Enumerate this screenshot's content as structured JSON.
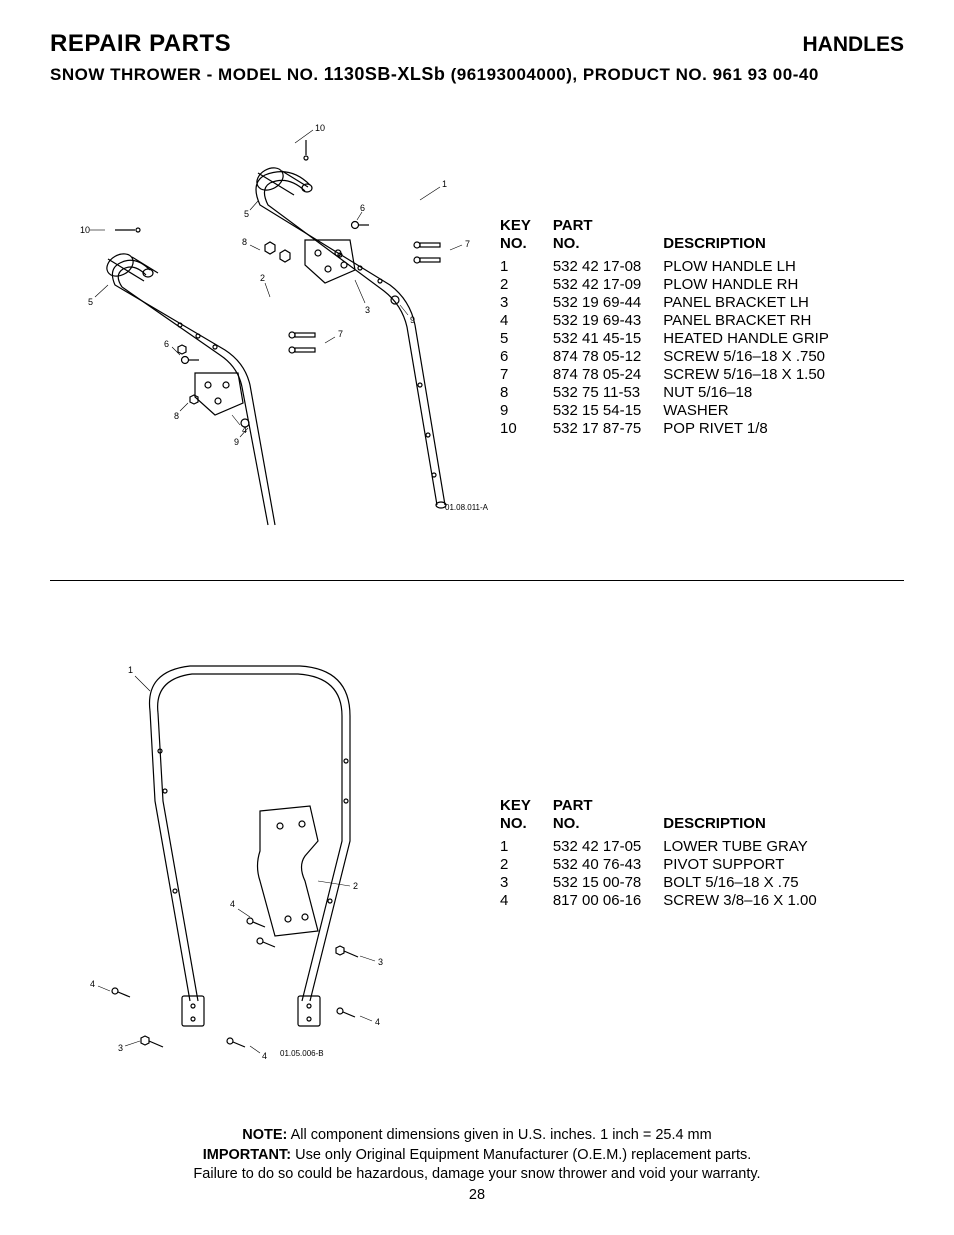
{
  "header": {
    "left_title": "REPAIR PARTS",
    "right_title": "HANDLES",
    "subtitle_prefix": "SNOW THROWER - MODEL NO. ",
    "model": "1130SB-XLSb",
    "subtitle_suffix": " (96193004000), PRODUCT NO. 961 93 00-40"
  },
  "table_headers": {
    "key_no": "KEY\nNO.",
    "part_no": "PART\nNO.",
    "description": "DESCRIPTION"
  },
  "table1": {
    "diagram_label": "01.08.011-A",
    "rows": [
      {
        "key": "1",
        "part": "532 42 17-08",
        "desc": "PLOW HANDLE LH"
      },
      {
        "key": "2",
        "part": "532 42 17-09",
        "desc": "PLOW HANDLE RH"
      },
      {
        "key": "3",
        "part": "532 19 69-44",
        "desc": "PANEL BRACKET LH"
      },
      {
        "key": "4",
        "part": "532 19 69-43",
        "desc": "PANEL BRACKET RH"
      },
      {
        "key": "5",
        "part": "532 41 45-15",
        "desc": "HEATED HANDLE GRIP"
      },
      {
        "key": "6",
        "part": "874 78 05-12",
        "desc": "SCREW 5/16–18 X .750"
      },
      {
        "key": "7",
        "part": "874 78 05-24",
        "desc": "SCREW 5/16–18 X 1.50"
      },
      {
        "key": "8",
        "part": "532 75 11-53",
        "desc": "NUT 5/16–18"
      },
      {
        "key": "9",
        "part": "532 15 54-15",
        "desc": "WASHER"
      },
      {
        "key": "10",
        "part": "532 17 87-75",
        "desc": "POP RIVET 1/8"
      }
    ]
  },
  "table2": {
    "diagram_label": "01.05.006-B",
    "rows": [
      {
        "key": "1",
        "part": "532 42 17-05",
        "desc": "LOWER TUBE GRAY"
      },
      {
        "key": "2",
        "part": "532 40 76-43",
        "desc": "PIVOT SUPPORT"
      },
      {
        "key": "3",
        "part": "532 15 00-78",
        "desc": "BOLT 5/16–18 X .75"
      },
      {
        "key": "4",
        "part": "817 00 06-16",
        "desc": "SCREW 3/8–16 X 1.00"
      }
    ]
  },
  "note": {
    "line1_bold": "NOTE:",
    "line1_rest": "  All component dimensions given in U.S. inches.    1 inch = 25.4 mm",
    "line2_bold": "IMPORTANT:",
    "line2_rest": " Use only Original Equipment Manufacturer (O.E.M.) replacement parts.",
    "line3": "Failure to do so could be hazardous, damage your snow thrower and void your warranty."
  },
  "page_number": "28",
  "style": {
    "text_color": "#000000",
    "background_color": "#ffffff",
    "stroke_width_main": 1.2,
    "stroke_width_callout": 0.6
  }
}
